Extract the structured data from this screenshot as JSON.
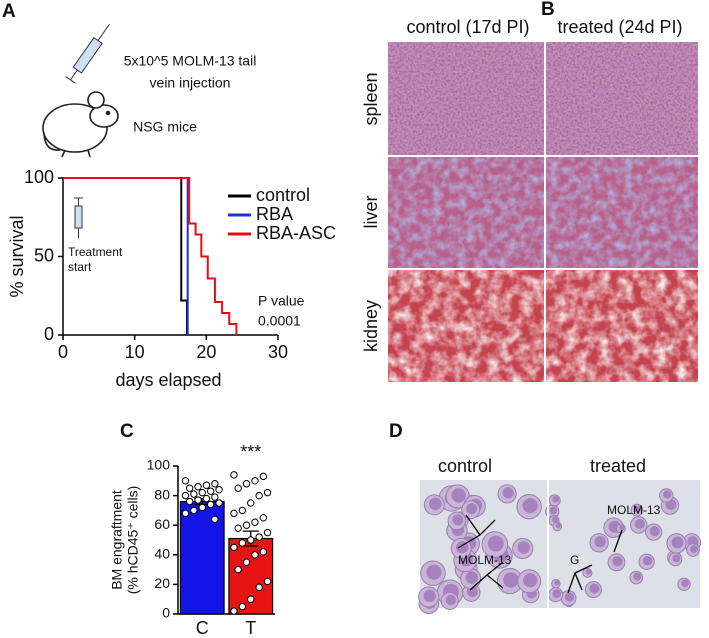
{
  "panel_labels": [
    "A",
    "B",
    "C",
    "D"
  ],
  "panel_a": {
    "injection_text": [
      "5x10^5 MOLM-13 tail",
      "vein injection"
    ],
    "mice_text": "NSG mice"
  },
  "panel_b": {
    "columns": [
      "control (17d PI)",
      "treated (24d PI)"
    ],
    "rows": [
      "spleen",
      "liver",
      "kidney"
    ]
  },
  "panel_d": {
    "columns": [
      "control",
      "treated"
    ],
    "annotations": [
      "MOLM-13",
      "MOLM-13",
      "G"
    ]
  },
  "chart_data": [
    {
      "type": "line",
      "xlabel": "days elapsed",
      "ylabel": "% survival",
      "xlim": [
        0,
        30
      ],
      "xticks": [
        0,
        10,
        20,
        30
      ],
      "ylim": [
        0,
        100
      ],
      "yticks": [
        0,
        50,
        100
      ],
      "legend": "upper right",
      "annotations": [
        "Treatment",
        "start",
        "P value",
        "0.0001"
      ],
      "series": [
        {
          "name": "control",
          "color": "#000000",
          "x": [
            0,
            16.5,
            16.5,
            17.3,
            17.3
          ],
          "values": [
            100,
            100,
            22,
            22,
            0
          ]
        },
        {
          "name": "RBA",
          "color": "#2233cc",
          "x": [
            0,
            17.4,
            17.4
          ],
          "values": [
            100,
            100,
            0
          ]
        },
        {
          "name": "RBA-ASC",
          "color": "#e01010",
          "x": [
            0,
            17.6,
            17.6,
            18.5,
            18.5,
            19.3,
            19.3,
            20.2,
            20.2,
            21.2,
            21.2,
            22.2,
            22.2,
            23.2,
            23.2,
            24.2,
            24.2
          ],
          "values": [
            100,
            100,
            71,
            71,
            64,
            64,
            50,
            50,
            36,
            36,
            21,
            21,
            14,
            14,
            7,
            7,
            0
          ]
        }
      ]
    },
    {
      "type": "bar",
      "ylabel": [
        "BM engraftment",
        "(% hCD45⁺ cells)"
      ],
      "categories": [
        "C",
        "T"
      ],
      "values": [
        76,
        51
      ],
      "errors": [
        2,
        5
      ],
      "colors": [
        "#1414e6",
        "#e61414"
      ],
      "ylim": [
        0,
        100
      ],
      "yticks": [
        0,
        20,
        40,
        60,
        80,
        100
      ],
      "annotation": "***",
      "points": [
        [
          90,
          88,
          87,
          86,
          85,
          84,
          83,
          82,
          81,
          80,
          79,
          78,
          77,
          76,
          75,
          74,
          72,
          70,
          68,
          64
        ],
        [
          94,
          93,
          90,
          88,
          85,
          82,
          80,
          75,
          70,
          68,
          65,
          62,
          60,
          58,
          55,
          52,
          50,
          48,
          45,
          42,
          40,
          35,
          30,
          22,
          18,
          10,
          5,
          2
        ]
      ]
    }
  ]
}
